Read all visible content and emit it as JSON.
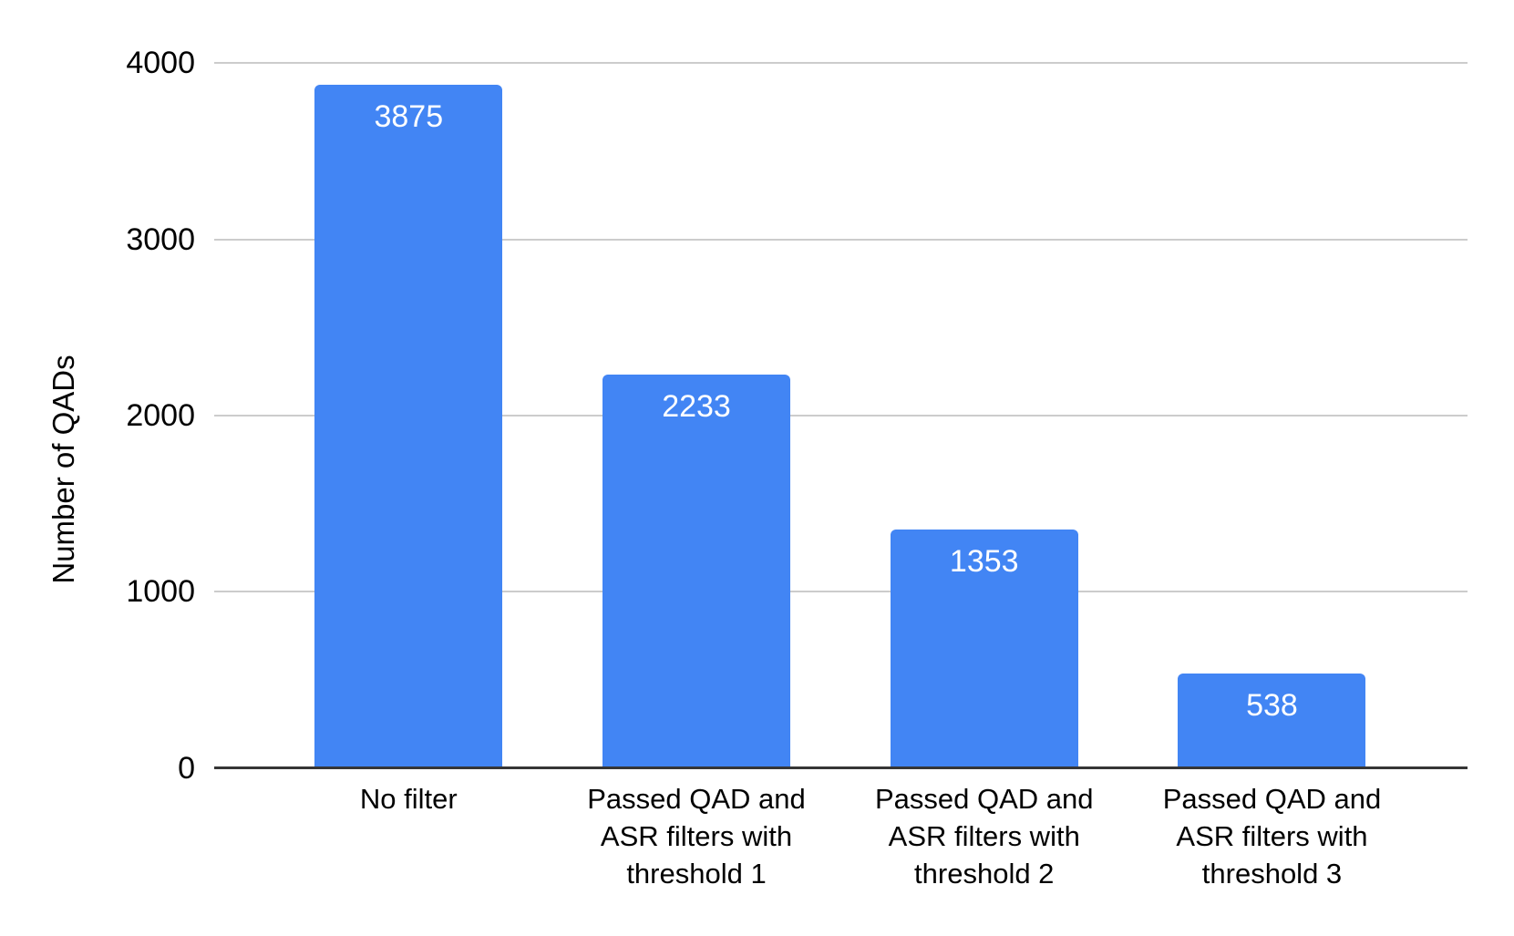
{
  "chart_data": {
    "type": "bar",
    "title": "",
    "xlabel": "",
    "ylabel": "Number of QADs",
    "categories": [
      "No filter",
      "Passed QAD and ASR filters with threshold 1",
      "Passed QAD and ASR filters with threshold 2",
      "Passed QAD and ASR filters with threshold 3"
    ],
    "category_lines": [
      [
        "No filter"
      ],
      [
        "Passed QAD and",
        "ASR filters with",
        "threshold 1"
      ],
      [
        "Passed QAD and",
        "ASR filters with",
        "threshold 2"
      ],
      [
        "Passed QAD and",
        "ASR filters with",
        "threshold 3"
      ]
    ],
    "values": [
      3875,
      2233,
      1353,
      538
    ],
    "bar_value_labels": [
      "3875",
      "2233",
      "1353",
      "538"
    ],
    "ylim": [
      0,
      4000
    ],
    "yticks": [
      0,
      1000,
      2000,
      3000,
      4000
    ],
    "ytick_labels": [
      "0",
      "1000",
      "2000",
      "3000",
      "4000"
    ],
    "grid": true,
    "legend_position": "none",
    "colors": {
      "bar": "#4285f4",
      "value_label": "#ffffff",
      "gridline": "#cccccc",
      "axis_line": "#363636",
      "tick_text": "#000000",
      "background": "#ffffff"
    }
  }
}
